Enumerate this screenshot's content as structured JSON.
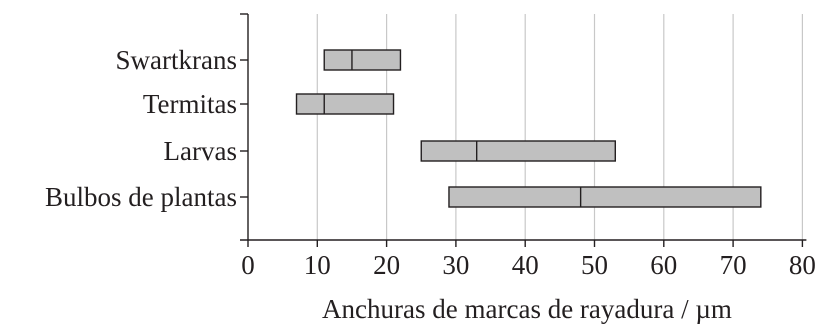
{
  "chart_data": {
    "type": "boxplot",
    "orientation": "horizontal",
    "categories": [
      "Swartkrans",
      "Termitas",
      "Larvas",
      "Bulbos de plantas"
    ],
    "series": [
      {
        "boxes": [
          {
            "category": "Swartkrans",
            "low": 11,
            "median": 15,
            "high": 22
          },
          {
            "category": "Termitas",
            "low": 7,
            "median": 11,
            "high": 21
          },
          {
            "category": "Larvas",
            "low": 25,
            "median": 33,
            "high": 53
          },
          {
            "category": "Bulbos de plantas",
            "low": 29,
            "median": 48,
            "high": 74
          }
        ]
      }
    ],
    "title": "",
    "xlabel": "Anchuras de marcas de rayadura / µm",
    "ylabel": "",
    "xlim": [
      0,
      80
    ],
    "xticks": [
      0,
      10,
      20,
      30,
      40,
      50,
      60,
      70,
      80
    ],
    "grid": "vertical",
    "colors": {
      "box_fill": "#c0c0c0",
      "stroke": "#231f20",
      "grid": "#c8c8c8",
      "background": "#ffffff"
    }
  }
}
